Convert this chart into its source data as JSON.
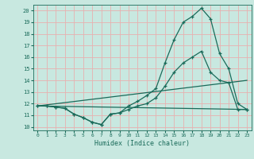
{
  "xlabel": "Humidex (Indice chaleur)",
  "x_ticks": [
    0,
    1,
    2,
    3,
    4,
    5,
    6,
    7,
    8,
    9,
    10,
    11,
    12,
    13,
    14,
    15,
    16,
    17,
    18,
    19,
    20,
    21,
    22,
    23
  ],
  "y_ticks": [
    10,
    11,
    12,
    13,
    14,
    15,
    16,
    17,
    18,
    19,
    20
  ],
  "xlim": [
    -0.5,
    23.5
  ],
  "ylim": [
    9.7,
    20.5
  ],
  "bg_color": "#c8e8e0",
  "grid_color": "#e8b0b0",
  "line_color": "#1a6b5a",
  "line1_x": [
    0,
    1,
    2,
    3,
    4,
    5,
    6,
    7,
    8,
    9,
    10,
    11,
    12,
    13,
    14,
    15,
    16,
    17,
    18,
    19,
    20,
    21,
    22,
    23
  ],
  "line1_y": [
    11.8,
    11.8,
    11.7,
    11.6,
    11.1,
    10.8,
    10.4,
    10.2,
    11.1,
    11.2,
    11.8,
    12.2,
    12.7,
    13.3,
    15.5,
    17.5,
    19.0,
    19.5,
    20.2,
    19.3,
    16.3,
    15.0,
    12.0,
    11.5
  ],
  "line2_x": [
    0,
    1,
    2,
    3,
    4,
    5,
    6,
    7,
    8,
    9,
    10,
    11,
    12,
    13,
    14,
    15,
    16,
    17,
    18,
    19,
    20,
    21,
    22,
    23
  ],
  "line2_y": [
    11.8,
    11.8,
    11.7,
    11.6,
    11.1,
    10.8,
    10.4,
    10.2,
    11.1,
    11.2,
    11.5,
    11.8,
    12.0,
    12.5,
    13.5,
    14.7,
    15.5,
    16.0,
    16.5,
    14.7,
    14.0,
    13.8,
    11.5,
    11.5
  ],
  "line3_x": [
    0,
    23
  ],
  "line3_y": [
    11.8,
    14.0
  ],
  "line4_x": [
    0,
    23
  ],
  "line4_y": [
    11.8,
    11.5
  ]
}
